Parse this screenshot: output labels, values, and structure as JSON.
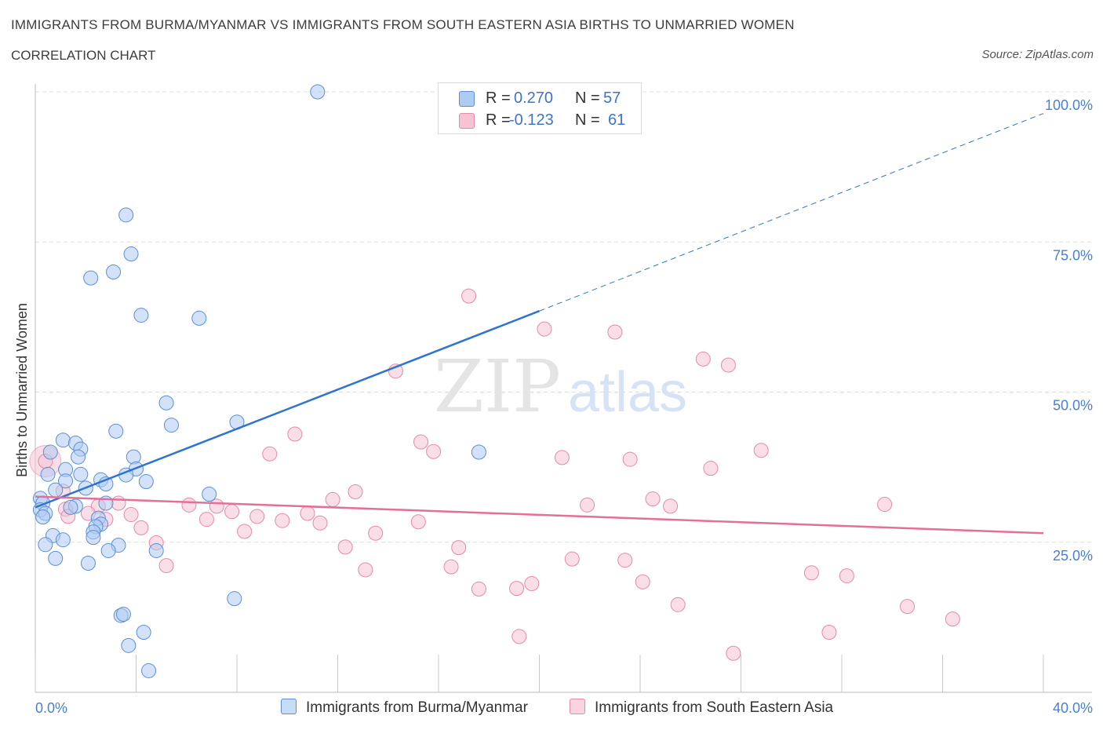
{
  "header": {
    "title": "IMMIGRANTS FROM BURMA/MYANMAR VS IMMIGRANTS FROM SOUTH EASTERN ASIA BIRTHS TO UNMARRIED WOMEN",
    "subtitle": "CORRELATION CHART",
    "source": "Source: ZipAtlas.com"
  },
  "watermark": {
    "zip": "ZIP",
    "atlas": "atlas"
  },
  "legend": {
    "r_label": "R =",
    "n_label": "N =",
    "series": [
      {
        "r": "0.270",
        "n": "57"
      },
      {
        "r": "-0.123",
        "n": "61"
      }
    ]
  },
  "bottom_legend": [
    {
      "label": "Immigrants from Burma/Myanmar"
    },
    {
      "label": "Immigrants from South Eastern Asia"
    }
  ],
  "colors": {
    "blue_fill": "#aecbf2",
    "blue_stroke": "#5b8fd8",
    "blue_line": "#2f74d0",
    "pink_fill": "#f6c3d3",
    "pink_stroke": "#e58aa8",
    "pink_line": "#e2709b",
    "tick_text": "#4a7fd1",
    "grid": "#dddddd"
  },
  "chart_data": {
    "type": "scatter",
    "title": "IMMIGRANTS FROM BURMA/MYANMAR VS IMMIGRANTS FROM SOUTH EASTERN ASIA BIRTHS TO UNMARRIED WOMEN",
    "xlabel": "",
    "ylabel": "Births to Unmarried Women",
    "xlim": [
      0,
      40
    ],
    "ylim": [
      0,
      100
    ],
    "x_tick_labels": [
      "0.0%",
      "40.0%"
    ],
    "y_ticks": [
      25,
      50,
      75,
      100
    ],
    "y_tick_labels": [
      "25.0%",
      "50.0%",
      "75.0%",
      "100.0%"
    ],
    "grid": "horizontal dashed",
    "legend_position": "top-center",
    "series": [
      {
        "name": "Immigrants from Burma/Myanmar",
        "r": 0.27,
        "n": 57,
        "trend": {
          "x0": 0,
          "y0": 30.8,
          "x1": 20,
          "y1": 63.5,
          "extend_dashed_to_x": 40,
          "extend_to_y": 96.4
        },
        "points": [
          [
            11.2,
            100
          ],
          [
            3.6,
            79.5
          ],
          [
            3.8,
            73
          ],
          [
            2.2,
            69
          ],
          [
            3.1,
            70
          ],
          [
            4.2,
            62.8
          ],
          [
            6.5,
            62.3
          ],
          [
            5.2,
            48.2
          ],
          [
            5.4,
            44.5
          ],
          [
            8.0,
            45
          ],
          [
            3.2,
            43.5
          ],
          [
            1.1,
            42
          ],
          [
            1.6,
            41.5
          ],
          [
            1.8,
            40.5
          ],
          [
            0.6,
            40
          ],
          [
            1.7,
            39.2
          ],
          [
            3.9,
            39.2
          ],
          [
            17.6,
            40
          ],
          [
            4.0,
            37.2
          ],
          [
            1.2,
            37.1
          ],
          [
            0.5,
            36.3
          ],
          [
            1.8,
            36.3
          ],
          [
            3.6,
            36.2
          ],
          [
            2.6,
            35.4
          ],
          [
            1.2,
            35.2
          ],
          [
            4.4,
            35.1
          ],
          [
            2.8,
            34.7
          ],
          [
            2.0,
            34
          ],
          [
            0.8,
            33.7
          ],
          [
            6.9,
            33
          ],
          [
            0.2,
            32.3
          ],
          [
            0.3,
            31.5
          ],
          [
            1.6,
            31
          ],
          [
            2.8,
            31.5
          ],
          [
            0.2,
            30.4
          ],
          [
            0.4,
            29.8
          ],
          [
            1.4,
            30.8
          ],
          [
            0.3,
            29.2
          ],
          [
            2.5,
            29
          ],
          [
            2.6,
            28
          ],
          [
            2.4,
            27.6
          ],
          [
            2.3,
            26.7
          ],
          [
            0.7,
            26.1
          ],
          [
            1.1,
            25.4
          ],
          [
            2.3,
            25.8
          ],
          [
            0.4,
            24.6
          ],
          [
            3.3,
            24.5
          ],
          [
            2.9,
            23.6
          ],
          [
            4.8,
            23.6
          ],
          [
            0.8,
            22.3
          ],
          [
            2.1,
            21.5
          ],
          [
            7.9,
            15.6
          ],
          [
            3.4,
            12.8
          ],
          [
            3.5,
            13
          ],
          [
            4.3,
            10
          ],
          [
            3.7,
            7.8
          ],
          [
            4.5,
            3.6
          ]
        ]
      },
      {
        "name": "Immigrants from South Eastern Asia",
        "r": -0.123,
        "n": 61,
        "trend": {
          "x0": 0,
          "y0": 32.6,
          "x1": 40,
          "y1": 26.5
        },
        "points": [
          [
            17.2,
            66
          ],
          [
            20.2,
            60.5
          ],
          [
            23.0,
            60
          ],
          [
            26.5,
            55.5
          ],
          [
            27.5,
            54.5
          ],
          [
            14.3,
            53.5
          ],
          [
            10.3,
            43
          ],
          [
            15.3,
            41.7
          ],
          [
            15.8,
            40.1
          ],
          [
            9.3,
            39.7
          ],
          [
            28.8,
            40.3
          ],
          [
            20.9,
            39.1
          ],
          [
            23.6,
            38.8
          ],
          [
            26.8,
            37.3
          ],
          [
            0.4,
            38.5
          ],
          [
            1.1,
            33.5
          ],
          [
            12.7,
            33.4
          ],
          [
            11.8,
            32.1
          ],
          [
            24.5,
            32.2
          ],
          [
            3.3,
            31.5
          ],
          [
            6.1,
            31.2
          ],
          [
            21.9,
            31.2
          ],
          [
            25.2,
            31
          ],
          [
            33.7,
            31.3
          ],
          [
            2.5,
            31
          ],
          [
            7.2,
            31.0
          ],
          [
            7.8,
            30.1
          ],
          [
            1.2,
            30.5
          ],
          [
            2.1,
            29.8
          ],
          [
            3.8,
            29.6
          ],
          [
            10.8,
            29.8
          ],
          [
            1.3,
            29.3
          ],
          [
            2.8,
            28.8
          ],
          [
            6.8,
            28.8
          ],
          [
            8.8,
            29.3
          ],
          [
            9.8,
            28.6
          ],
          [
            11.3,
            28.2
          ],
          [
            15.2,
            28.4
          ],
          [
            4.2,
            27.4
          ],
          [
            8.3,
            26.8
          ],
          [
            13.5,
            26.5
          ],
          [
            4.8,
            24.9
          ],
          [
            12.3,
            24.2
          ],
          [
            16.8,
            24.1
          ],
          [
            21.3,
            22.2
          ],
          [
            23.4,
            22
          ],
          [
            5.2,
            21.1
          ],
          [
            16.5,
            20.9
          ],
          [
            13.1,
            20.4
          ],
          [
            30.8,
            19.9
          ],
          [
            32.2,
            19.4
          ],
          [
            24.1,
            18.4
          ],
          [
            19.7,
            18.1
          ],
          [
            17.6,
            17.2
          ],
          [
            19.1,
            17.3
          ],
          [
            25.5,
            14.6
          ],
          [
            34.6,
            14.3
          ],
          [
            36.4,
            12.2
          ],
          [
            31.5,
            10
          ],
          [
            19.2,
            9.3
          ],
          [
            27.7,
            6.5
          ]
        ]
      }
    ]
  }
}
